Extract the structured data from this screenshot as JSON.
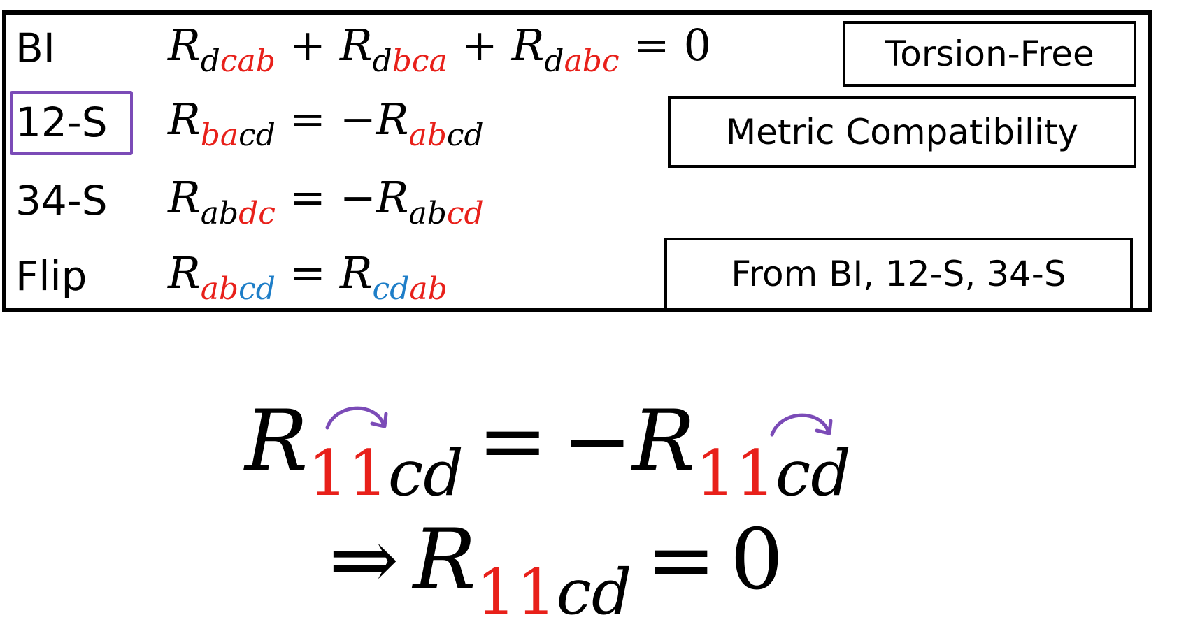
{
  "colors": {
    "red": "#e8201a",
    "blue": "#1e7ec8",
    "black": "#000000",
    "purple": "#7b4bb7"
  },
  "rows": [
    {
      "label": "BI",
      "equation": [
        {
          "t": "R",
          "k": "R"
        },
        {
          "t": "d",
          "k": "s",
          "c": "black"
        },
        {
          "t": "cab",
          "k": "s",
          "c": "red"
        },
        {
          "t": "+",
          "k": "o"
        },
        {
          "t": "R",
          "k": "R"
        },
        {
          "t": "d",
          "k": "s",
          "c": "black"
        },
        {
          "t": "bca",
          "k": "s",
          "c": "red"
        },
        {
          "t": "+",
          "k": "o"
        },
        {
          "t": "R",
          "k": "R"
        },
        {
          "t": "d",
          "k": "s",
          "c": "black"
        },
        {
          "t": "abc",
          "k": "s",
          "c": "red"
        },
        {
          "t": "=",
          "k": "o"
        },
        {
          "t": "0",
          "k": "n"
        }
      ],
      "note": "Torsion-Free"
    },
    {
      "label": "12-S",
      "equation": [
        {
          "t": "R",
          "k": "R"
        },
        {
          "t": "ba",
          "k": "s",
          "c": "red"
        },
        {
          "t": "cd",
          "k": "s",
          "c": "black"
        },
        {
          "t": "=",
          "k": "o"
        },
        {
          "t": "−R",
          "k": "R"
        },
        {
          "t": "ab",
          "k": "s",
          "c": "red"
        },
        {
          "t": "cd",
          "k": "s",
          "c": "black"
        }
      ],
      "note": "Metric Compatibility"
    },
    {
      "label": "34-S",
      "equation": [
        {
          "t": "R",
          "k": "R"
        },
        {
          "t": "ab",
          "k": "s",
          "c": "black"
        },
        {
          "t": "dc",
          "k": "s",
          "c": "red"
        },
        {
          "t": "=",
          "k": "o"
        },
        {
          "t": "−R",
          "k": "R"
        },
        {
          "t": "ab",
          "k": "s",
          "c": "black"
        },
        {
          "t": "cd",
          "k": "s",
          "c": "red"
        }
      ],
      "note": ""
    },
    {
      "label": "Flip",
      "equation": [
        {
          "t": "R",
          "k": "R"
        },
        {
          "t": "ab",
          "k": "s",
          "c": "red"
        },
        {
          "t": "cd",
          "k": "s",
          "c": "blue"
        },
        {
          "t": "=",
          "k": "o"
        },
        {
          "t": "R",
          "k": "R"
        },
        {
          "t": "cd",
          "k": "s",
          "c": "blue"
        },
        {
          "t": "ab",
          "k": "s",
          "c": "red"
        }
      ],
      "note": "From BI, 12-S, 34-S"
    }
  ],
  "derivation": {
    "line1": [
      {
        "t": "R",
        "k": "R"
      },
      {
        "t": "11",
        "k": "su",
        "c": "red"
      },
      {
        "t": "cd",
        "k": "s",
        "c": "black"
      },
      {
        "t": "=",
        "k": "o"
      },
      {
        "t": "−R",
        "k": "R"
      },
      {
        "t": "11",
        "k": "su",
        "c": "red"
      },
      {
        "t": "cd",
        "k": "s",
        "c": "black"
      }
    ],
    "line2": [
      {
        "t": "⇒",
        "k": "o"
      },
      {
        "t": "R",
        "k": "R"
      },
      {
        "t": "11",
        "k": "su",
        "c": "red"
      },
      {
        "t": "cd",
        "k": "s",
        "c": "black"
      },
      {
        "t": "=",
        "k": "o"
      },
      {
        "t": "0",
        "k": "n"
      }
    ]
  }
}
